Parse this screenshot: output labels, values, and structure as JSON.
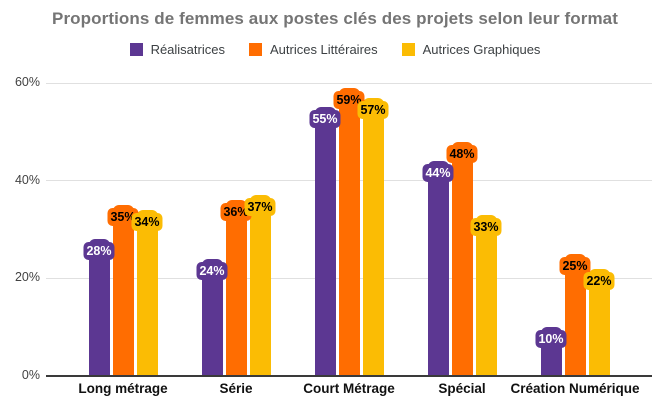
{
  "title": "Proportions de femmes aux postes clés des projets selon leur format",
  "chart_data": {
    "type": "bar",
    "title": "Proportions de femmes aux postes clés des projets selon leur format",
    "categories": [
      "Long métrage",
      "Série",
      "Court Métrage",
      "Spécial",
      "Création Numérique"
    ],
    "series": [
      {
        "name": "Réalisatrices",
        "color": "#5C3792",
        "label_text_color": "#FFFFFF",
        "values": [
          28,
          24,
          55,
          44,
          10
        ]
      },
      {
        "name": "Autrices Littéraires",
        "color": "#FF6D01",
        "label_text_color": "#000000",
        "values": [
          35,
          36,
          59,
          48,
          25
        ]
      },
      {
        "name": "Autrices Graphiques",
        "color": "#FBBC04",
        "label_text_color": "#000000",
        "values": [
          34,
          37,
          57,
          33,
          22
        ]
      }
    ],
    "value_suffix": "%",
    "y_ticks": [
      0,
      20,
      40,
      60
    ],
    "y_tick_labels": [
      "0%",
      "20%",
      "40%",
      "60%"
    ],
    "ylim": [
      0,
      60
    ],
    "grid": true,
    "legend_position": "top",
    "colors": {
      "title": "#757575",
      "grid": "#E0E0E0",
      "axis": "#3A3A3A",
      "tick_label": "#424242",
      "category_label": "#111111",
      "legend_label": "#3C4043",
      "background": "#FFFFFF"
    }
  }
}
